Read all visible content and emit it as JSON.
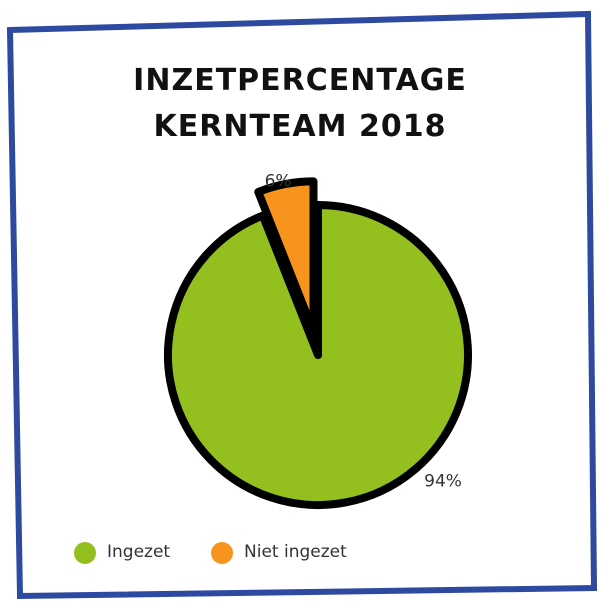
{
  "chart_data": {
    "type": "pie",
    "title": "INZETPERCENTAGE KERNTEAM 2018",
    "categories": [
      "Ingezet",
      "Niet ingezet"
    ],
    "values": [
      94,
      6
    ],
    "value_labels": [
      "94%",
      "6%"
    ],
    "colors": [
      "#93c01f",
      "#f7941d"
    ],
    "legend": "bottom-left"
  }
}
